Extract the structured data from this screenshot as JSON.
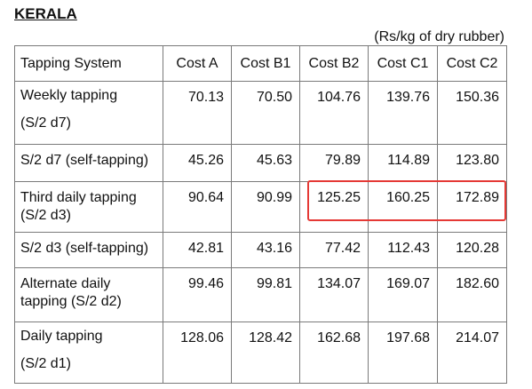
{
  "title": "KERALA",
  "unit_note": "(Rs/kg of dry rubber)",
  "table": {
    "columns": [
      "Tapping System",
      "Cost  A",
      "Cost B1",
      "Cost B2",
      "Cost C1",
      "Cost C2"
    ],
    "rows": [
      {
        "system": [
          "Weekly tapping",
          "(S/2 d7)"
        ],
        "values": [
          "70.13",
          "70.50",
          "104.76",
          "139.76",
          "150.36"
        ]
      },
      {
        "system": [
          "S/2 d7 (self-tapping)"
        ],
        "values": [
          "45.26",
          "45.63",
          "79.89",
          "114.89",
          "123.80"
        ]
      },
      {
        "system": [
          "Third daily tapping",
          "(S/2 d3)"
        ],
        "values": [
          "90.64",
          "90.99",
          "125.25",
          "160.25",
          "172.89"
        ]
      },
      {
        "system": [
          "S/2 d3 (self-tapping)"
        ],
        "values": [
          "42.81",
          "43.16",
          "77.42",
          "112.43",
          "120.28"
        ]
      },
      {
        "system": [
          "Alternate daily",
          "tapping (S/2 d2)"
        ],
        "values": [
          "99.46",
          "99.81",
          "134.07",
          "169.07",
          "182.60"
        ]
      },
      {
        "system": [
          "Daily tapping",
          "(S/2 d1)"
        ],
        "values": [
          "128.06",
          "128.42",
          "162.68",
          "197.68",
          "214.07"
        ]
      }
    ]
  },
  "highlight_color": "#e53935"
}
